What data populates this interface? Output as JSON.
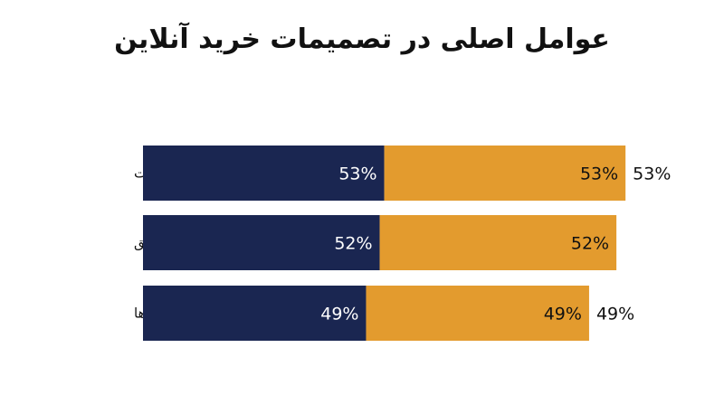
{
  "chart_data": {
    "type": "bar",
    "orientation": "horizontal",
    "stacked": true,
    "title": "عوامل اصلی در تصمیمات خرید آنلاین",
    "categories": [
      "رتبه‌بندی‌ها و نظرات",
      "توضیحات دقیق",
      "قیمت / تخفیف‌ها"
    ],
    "series": [
      {
        "values": [
          53,
          52,
          49
        ],
        "labels": [
          "53%",
          "52%",
          "49%"
        ],
        "color": "#1a2651",
        "label_color": "#ffffff"
      },
      {
        "values": [
          53,
          52,
          49
        ],
        "labels": [
          "53%",
          "52%",
          "49%"
        ],
        "color": "#e39b2e",
        "label_color": "#111111"
      }
    ],
    "outside_labels": [
      "53%",
      "",
      "49%"
    ],
    "xlim": [
      0,
      110
    ],
    "grid": false,
    "legend": "none"
  }
}
